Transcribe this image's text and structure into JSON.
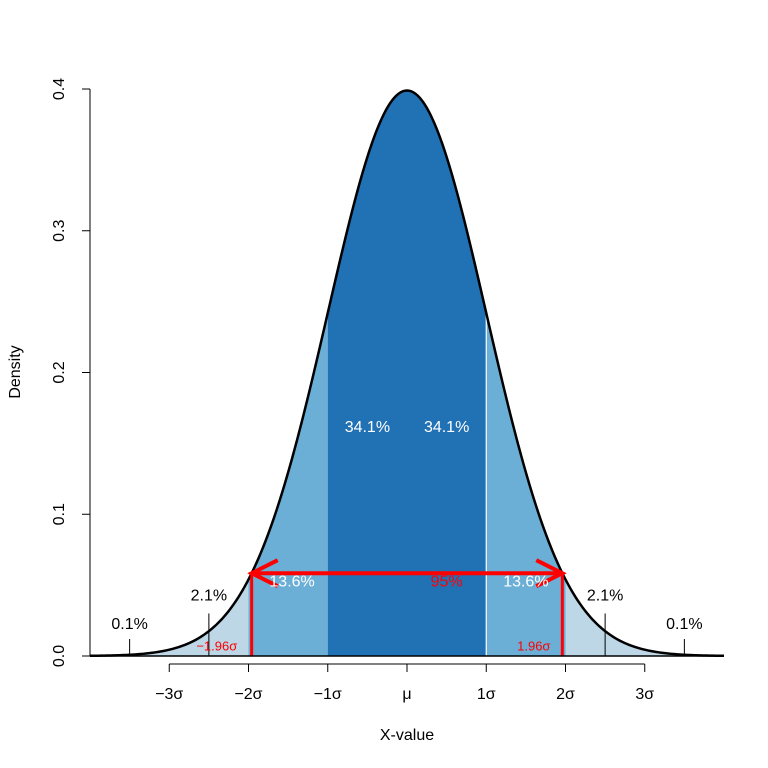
{
  "chart_data": {
    "type": "area",
    "distribution": "normal",
    "xlabel": "X-value",
    "ylabel": "Density",
    "xlim": [
      -4,
      4
    ],
    "ylim": [
      0,
      0.4
    ],
    "y_ticks": [
      0.0,
      0.1,
      0.2,
      0.3,
      0.4
    ],
    "y_tick_labels": [
      "0.0",
      "0.1",
      "0.2",
      "0.3",
      "0.4"
    ],
    "x_ticks": [
      -3,
      -2,
      -1,
      0,
      1,
      2,
      3
    ],
    "x_tick_labels": [
      "−3σ",
      "−2σ",
      "−1σ",
      "μ",
      "1σ",
      "2σ",
      "3σ"
    ],
    "colors": {
      "inner": "#2171b5",
      "middle": "#6baed6",
      "outer": "#bdd7e7",
      "curve": "#000000",
      "highlight": "#ff0000",
      "label_light": "#ffffff"
    },
    "regions": [
      {
        "from": -4,
        "to": -2,
        "band": "outer"
      },
      {
        "from": -2,
        "to": -1,
        "band": "middle"
      },
      {
        "from": -1,
        "to": 1,
        "band": "inner"
      },
      {
        "from": 1,
        "to": 2,
        "band": "middle"
      },
      {
        "from": 2,
        "to": 4,
        "band": "outer"
      }
    ],
    "region_labels": [
      {
        "text": "34.1%",
        "x": -0.5,
        "y": 0.158,
        "color": "#ffffff"
      },
      {
        "text": "34.1%",
        "x": 0.5,
        "y": 0.158,
        "color": "#ffffff"
      },
      {
        "text": "13.6%",
        "x": -1.45,
        "y": 0.049,
        "color": "#ffffff"
      },
      {
        "text": "13.6%",
        "x": 1.5,
        "y": 0.049,
        "color": "#ffffff"
      },
      {
        "text": "2.1%",
        "x": -2.5,
        "y": 0.039,
        "color": "#000000"
      },
      {
        "text": "2.1%",
        "x": 2.5,
        "y": 0.039,
        "color": "#000000"
      },
      {
        "text": "0.1%",
        "x": -3.5,
        "y": 0.019,
        "color": "#000000"
      },
      {
        "text": "0.1%",
        "x": 3.5,
        "y": 0.019,
        "color": "#000000"
      }
    ],
    "pointer_lines": [
      {
        "x": -2.5,
        "y_from": 0,
        "y_to": 0.03
      },
      {
        "x": 2.5,
        "y_from": 0,
        "y_to": 0.03
      },
      {
        "x": -3.5,
        "y_from": 0,
        "y_to": 0.012
      },
      {
        "x": 3.5,
        "y_from": 0,
        "y_to": 0.012
      }
    ],
    "interval": {
      "lower": -1.96,
      "upper": 1.96,
      "y": 0.0584,
      "label": "95%",
      "label_x": 0.5,
      "label_y": 0.049,
      "lower_label": "−1.96σ",
      "upper_label": "1.96σ",
      "lower_label_x": -2.4,
      "upper_label_x": 1.6,
      "end_labels_y": 0.004
    }
  }
}
